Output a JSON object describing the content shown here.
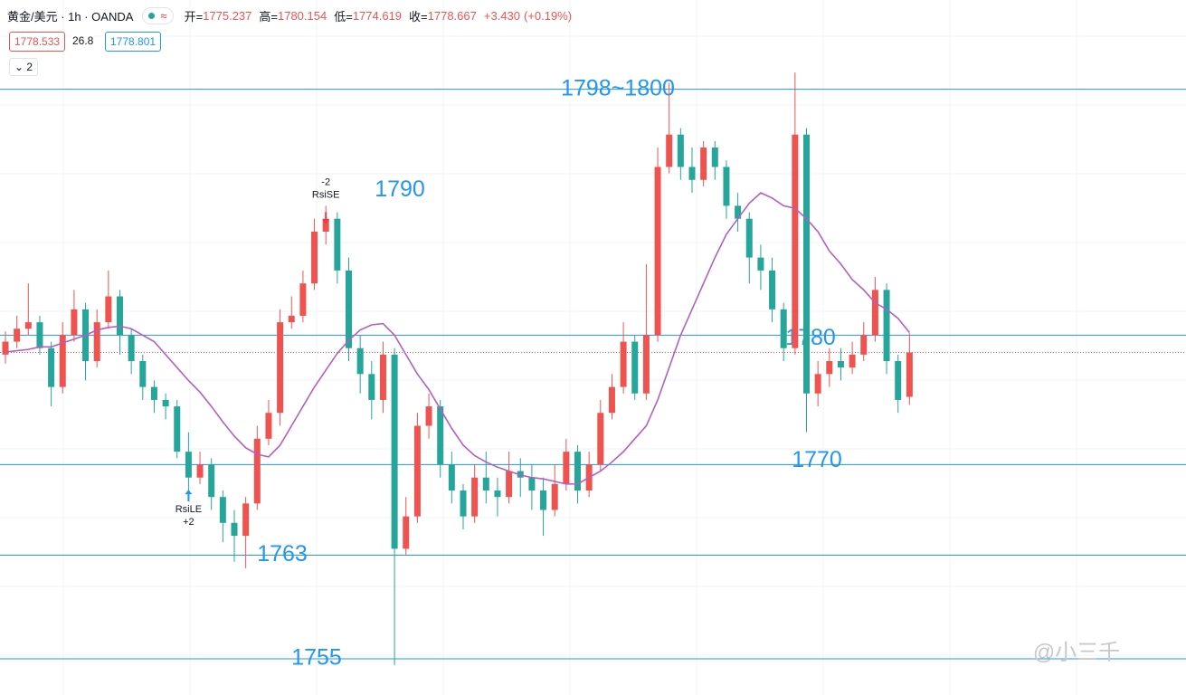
{
  "header": {
    "symbol": "黄金/美元 · 1h · OANDA",
    "ohlc_labels": [
      "开=",
      "高=",
      "低=",
      "收="
    ],
    "change": "+3.430",
    "change_pct": "(+0.19%)",
    "bid": 1778.533,
    "spread": 26.8,
    "ask": 1778.801,
    "indicators": "2"
  },
  "chart_data": {
    "type": "candlestick",
    "up_color": "#ef5350",
    "down_color": "#26a69a",
    "open": [
      1778.5,
      1779.5,
      1780.5,
      1781,
      1779,
      1776,
      1780,
      1782,
      1778,
      1781,
      1783,
      1780,
      1778,
      1776,
      1775,
      1774.5,
      1771,
      1769,
      1770,
      1767.5,
      1765.5,
      1764.5,
      1767,
      1772,
      1774,
      1781,
      1781.5,
      1784,
      1788,
      1789,
      1785,
      1779,
      1777,
      1775,
      1778.5,
      1763.5,
      1766,
      1773,
      1774.5,
      1770,
      1768,
      1766,
      1769,
      1768,
      1767.5,
      1769.5,
      1769,
      1768,
      1766.5,
      1768.5,
      1771,
      1768,
      1770,
      1774,
      1776,
      1779.5,
      1775.5,
      1780,
      1793,
      1795.5,
      1793,
      1792,
      1794.5,
      1793,
      1790,
      1789,
      1786,
      1785,
      1782,
      1779,
      1795.5,
      1775.5,
      1777,
      1778,
      1777.5,
      1778.5,
      1780,
      1783.5,
      1778,
      1775.237
    ],
    "high": [
      1780.3,
      1781.5,
      1784,
      1781.5,
      1779.5,
      1781,
      1783.5,
      1782.5,
      1782,
      1785,
      1783.5,
      1780.5,
      1778.5,
      1776.5,
      1775.5,
      1775,
      1772.5,
      1771,
      1770.5,
      1768,
      1766.5,
      1767.5,
      1773,
      1775,
      1782,
      1783,
      1785,
      1789,
      1790,
      1789.5,
      1786,
      1780,
      1778,
      1779.5,
      1779,
      1767.5,
      1774,
      1775.5,
      1775,
      1771,
      1768.5,
      1770,
      1771,
      1769,
      1771,
      1770.5,
      1770,
      1769,
      1770,
      1772,
      1771.5,
      1771,
      1775,
      1777,
      1781,
      1780,
      1785.5,
      1794.5,
      1799.5,
      1796,
      1794.5,
      1795,
      1795,
      1793.5,
      1791,
      1789.5,
      1787,
      1786,
      1782.5,
      1800.3,
      1796,
      1778,
      1779,
      1779,
      1779.5,
      1781,
      1784.5,
      1784,
      1778.5,
      1780.154
    ],
    "low": [
      1777.8,
      1779,
      1780,
      1778.5,
      1774.5,
      1775.5,
      1779.5,
      1776.5,
      1777.5,
      1780.5,
      1778.5,
      1777,
      1775,
      1774,
      1773.5,
      1770.5,
      1767.5,
      1768.5,
      1766.5,
      1764,
      1762.5,
      1762,
      1766.5,
      1771.5,
      1773,
      1780.5,
      1781,
      1783.5,
      1787,
      1784,
      1778,
      1775.5,
      1773.5,
      1774,
      1754.5,
      1763,
      1765.5,
      1772,
      1769,
      1767,
      1765,
      1765.5,
      1767,
      1766,
      1767,
      1767.5,
      1766.5,
      1764.5,
      1766,
      1768,
      1767,
      1767.5,
      1769.5,
      1773.5,
      1775.5,
      1775,
      1775,
      1779.5,
      1792.5,
      1792,
      1791,
      1791.5,
      1792,
      1789,
      1788,
      1784,
      1783.5,
      1781,
      1778,
      1778.5,
      1772.5,
      1774.5,
      1776,
      1776.5,
      1777,
      1778,
      1779.5,
      1777,
      1774,
      1774.619
    ],
    "close": [
      1779.5,
      1780.5,
      1781,
      1779,
      1776,
      1780,
      1782,
      1778,
      1781,
      1783,
      1780,
      1778,
      1776,
      1775,
      1774.5,
      1771,
      1769,
      1770,
      1767.5,
      1765.5,
      1764.5,
      1767,
      1772,
      1774,
      1781,
      1781.5,
      1784,
      1788,
      1789,
      1785,
      1779,
      1777,
      1775,
      1778.5,
      1763.5,
      1766,
      1773,
      1774.5,
      1770,
      1768,
      1766,
      1769,
      1768,
      1767.5,
      1769.5,
      1769,
      1768,
      1766.5,
      1768.5,
      1771,
      1768,
      1770,
      1774,
      1776,
      1779.5,
      1775.5,
      1780,
      1793,
      1795.5,
      1793,
      1792,
      1794.5,
      1793,
      1790,
      1789,
      1786,
      1785,
      1782,
      1779,
      1795.5,
      1775.5,
      1777,
      1778,
      1777.5,
      1778.5,
      1780,
      1783.5,
      1778,
      1775,
      1778.667
    ],
    "series": [
      {
        "color": "#b35fc2",
        "values": [
          1778.7,
          1778.8,
          1778.9,
          1779.1,
          1779.1,
          1779.4,
          1779.7,
          1780,
          1780.4,
          1780.6,
          1780.7,
          1780.5,
          1780,
          1779.5,
          1778.5,
          1777.5,
          1776.5,
          1775.6,
          1774.5,
          1773.3,
          1772.2,
          1771.3,
          1770.8,
          1770.6,
          1771.5,
          1773,
          1774.5,
          1776,
          1777.3,
          1778.6,
          1779.6,
          1780.4,
          1780.8,
          1780.9,
          1780,
          1778.5,
          1777,
          1775.8,
          1774.3,
          1772.8,
          1771.5,
          1770.7,
          1770.2,
          1769.8,
          1769.5,
          1769.2,
          1769,
          1768.9,
          1768.7,
          1768.5,
          1768.5,
          1769,
          1769.5,
          1770.2,
          1771,
          1772,
          1773,
          1775,
          1777.5,
          1780,
          1782,
          1784,
          1786,
          1787.8,
          1789,
          1790.2,
          1791,
          1790.6,
          1790,
          1789.8,
          1789,
          1788,
          1786.5,
          1785.5,
          1784.3,
          1783.5,
          1782.5,
          1782,
          1781.3,
          1780.2
        ]
      }
    ],
    "ylim": [
      1752.2,
      1805.9
    ],
    "levels": [
      {
        "value": 1799,
        "label": "1798~1800"
      },
      1780,
      1770,
      1763,
      1755
    ],
    "notes": [
      1790
    ],
    "level_color": "#2196f3",
    "signals": [
      {
        "name": "RsiLE",
        "value": "+2"
      },
      {
        "name": "RsiSE",
        "value": "-2"
      }
    ],
    "watermark": "@小三千"
  }
}
